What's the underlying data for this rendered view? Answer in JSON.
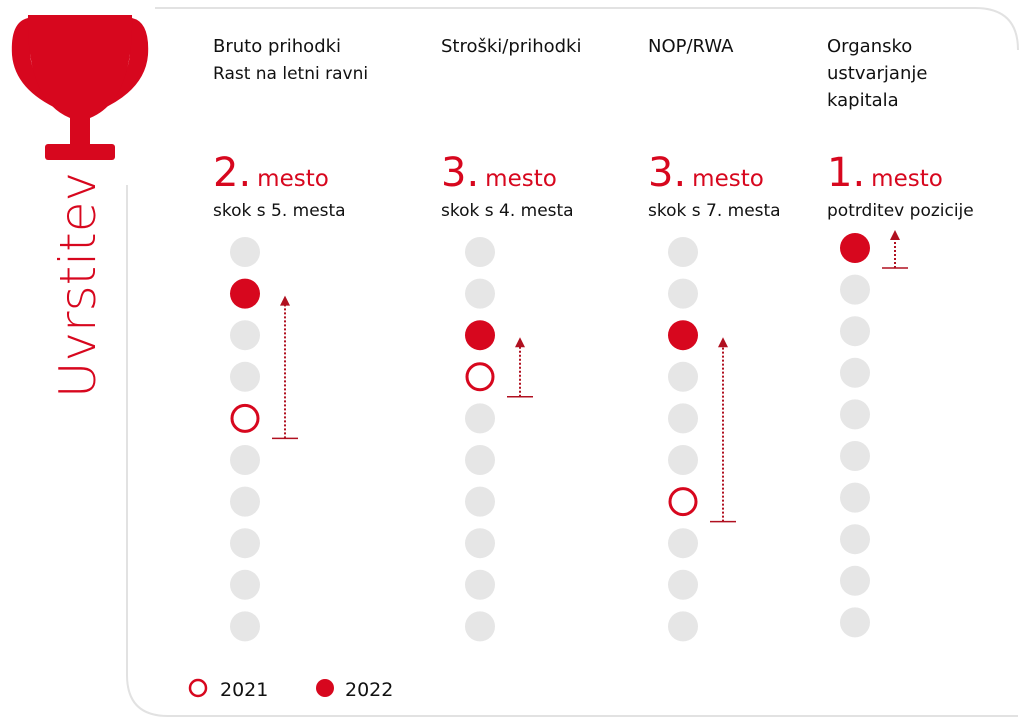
{
  "title": "Uvrstitev",
  "columns": [
    {
      "heading": [
        "Bruto prihodki"
      ],
      "subheading": "Rast na letni ravni",
      "place": "2.",
      "place_word": "mesto",
      "note": "skok s 5. mesta",
      "rank_2022": 2,
      "rank_2021": 5,
      "positions": 10
    },
    {
      "heading": [
        "Stroški/prihodki"
      ],
      "place": "3.",
      "place_word": "mesto",
      "note": "skok s 4. mesta",
      "rank_2022": 3,
      "rank_2021": 4,
      "positions": 10
    },
    {
      "heading": [
        "NOP/RWA"
      ],
      "place": "3.",
      "place_word": "mesto",
      "note": "skok s 7. mesta",
      "rank_2022": 3,
      "rank_2021": 7,
      "positions": 10
    },
    {
      "heading": [
        "Organsko",
        "ustvarjanje",
        "kapitala"
      ],
      "place": "1.",
      "place_word": "mesto",
      "note": "potrditev pozicije",
      "rank_2022": 1,
      "rank_2021": 1,
      "positions": 10
    }
  ],
  "legend": [
    {
      "label": "2021"
    },
    {
      "label": "2022"
    }
  ]
}
